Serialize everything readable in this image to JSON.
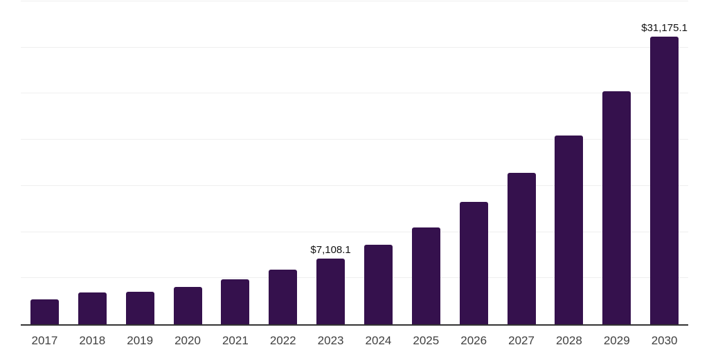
{
  "chart_data": {
    "type": "bar",
    "title": "",
    "xlabel": "",
    "ylabel": "",
    "categories": [
      "2017",
      "2018",
      "2019",
      "2020",
      "2021",
      "2022",
      "2023",
      "2024",
      "2025",
      "2026",
      "2027",
      "2028",
      "2029",
      "2030"
    ],
    "values": [
      2670,
      3420,
      3495,
      4040,
      4860,
      5910,
      7108.1,
      8620,
      10520,
      13260,
      16380,
      20440,
      25250,
      31175.1
    ],
    "data_labels": [
      {
        "category": "2023",
        "text": "$7,108.1"
      },
      {
        "category": "2030",
        "text": "$31,175.1"
      }
    ],
    "ylim": [
      0,
      35000
    ],
    "gridline_step": 5000,
    "grid": "horizontal",
    "legend": "none",
    "y_tick_labels_visible": false
  },
  "style": {
    "bar_color": "#35114D",
    "grid_color": "#EFEFEF",
    "axis_color": "#333333",
    "tick_label_color": "#404040",
    "data_label_color": "#111111",
    "background": "#FFFFFF"
  }
}
